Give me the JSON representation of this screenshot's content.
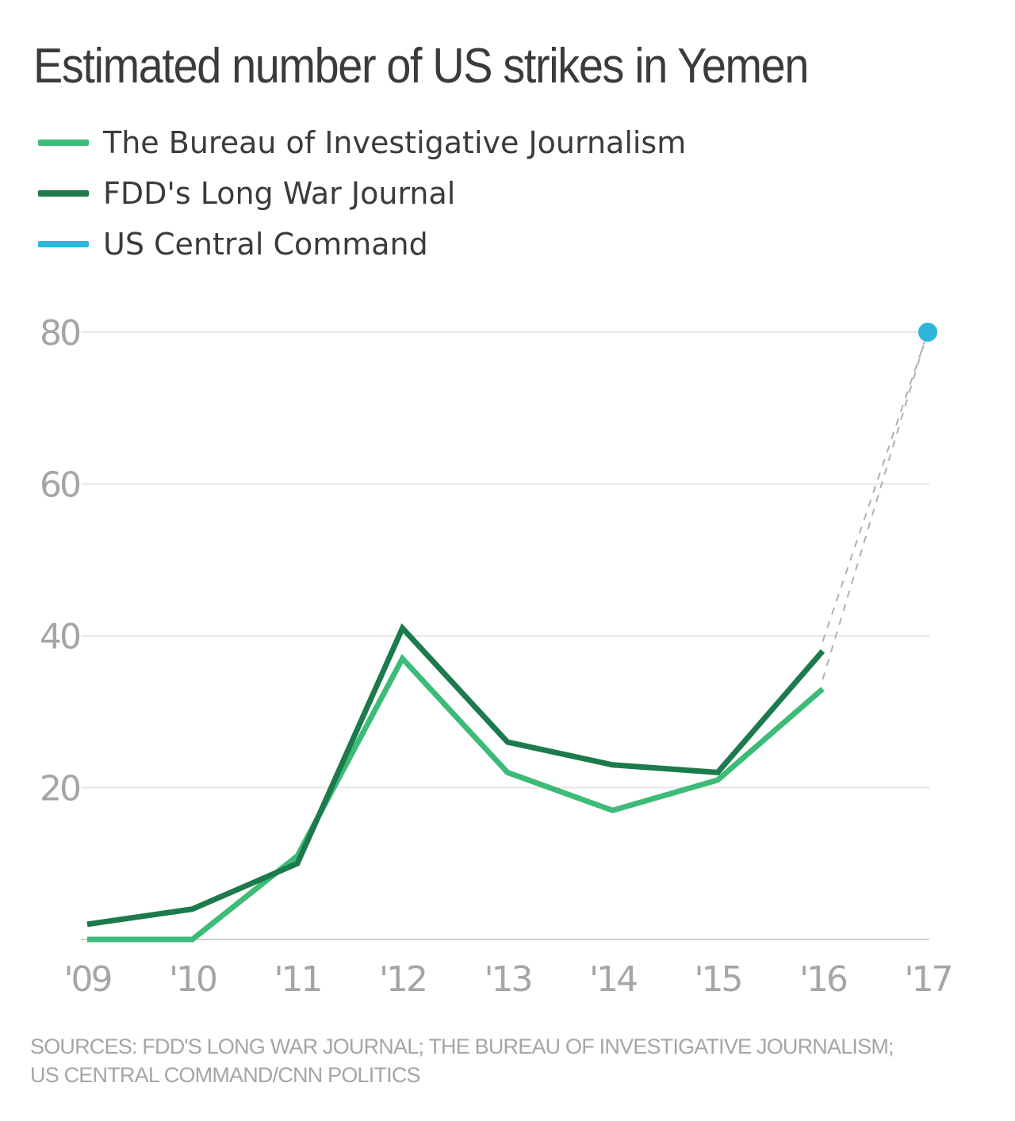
{
  "colors": {
    "bureau": "#3dbb78",
    "fdd": "#1d7a4c",
    "centcom": "#2eb5dc",
    "grid": "#e6e6e6",
    "connector": "#b0b0b0",
    "axis_text": "#a5a5a5",
    "title_text": "#3b3b3b"
  },
  "chart_data": {
    "type": "line",
    "title": "Estimated number of US strikes in Yemen",
    "categories": [
      "'09",
      "'10",
      "'11",
      "'12",
      "'13",
      "'14",
      "'15",
      "'16",
      "'17"
    ],
    "y_ticks": [
      20,
      40,
      60,
      80
    ],
    "ylim": [
      0,
      80
    ],
    "grid": true,
    "legend_position": "top-left",
    "series": [
      {
        "name": "The Bureau of Investigative Journalism",
        "color": "#3dbb78",
        "values": [
          0,
          0,
          11,
          37,
          22,
          17,
          21,
          33,
          null
        ]
      },
      {
        "name": "FDD's Long War Journal",
        "color": "#1d7a4c",
        "values": [
          2,
          4,
          10,
          41,
          26,
          23,
          22,
          38,
          null
        ]
      },
      {
        "name": "US Central Command",
        "color": "#2eb5dc",
        "values": [
          null,
          null,
          null,
          null,
          null,
          null,
          null,
          null,
          80
        ]
      }
    ],
    "connector": {
      "style": "dashed",
      "from_category": "'16",
      "to_category": "'17"
    }
  },
  "sources": {
    "line1": "SOURCES: FDD'S LONG WAR JOURNAL; THE BUREAU OF INVESTIGATIVE JOURNALISM;",
    "line2": "US CENTRAL COMMAND/CNN POLITICS"
  }
}
